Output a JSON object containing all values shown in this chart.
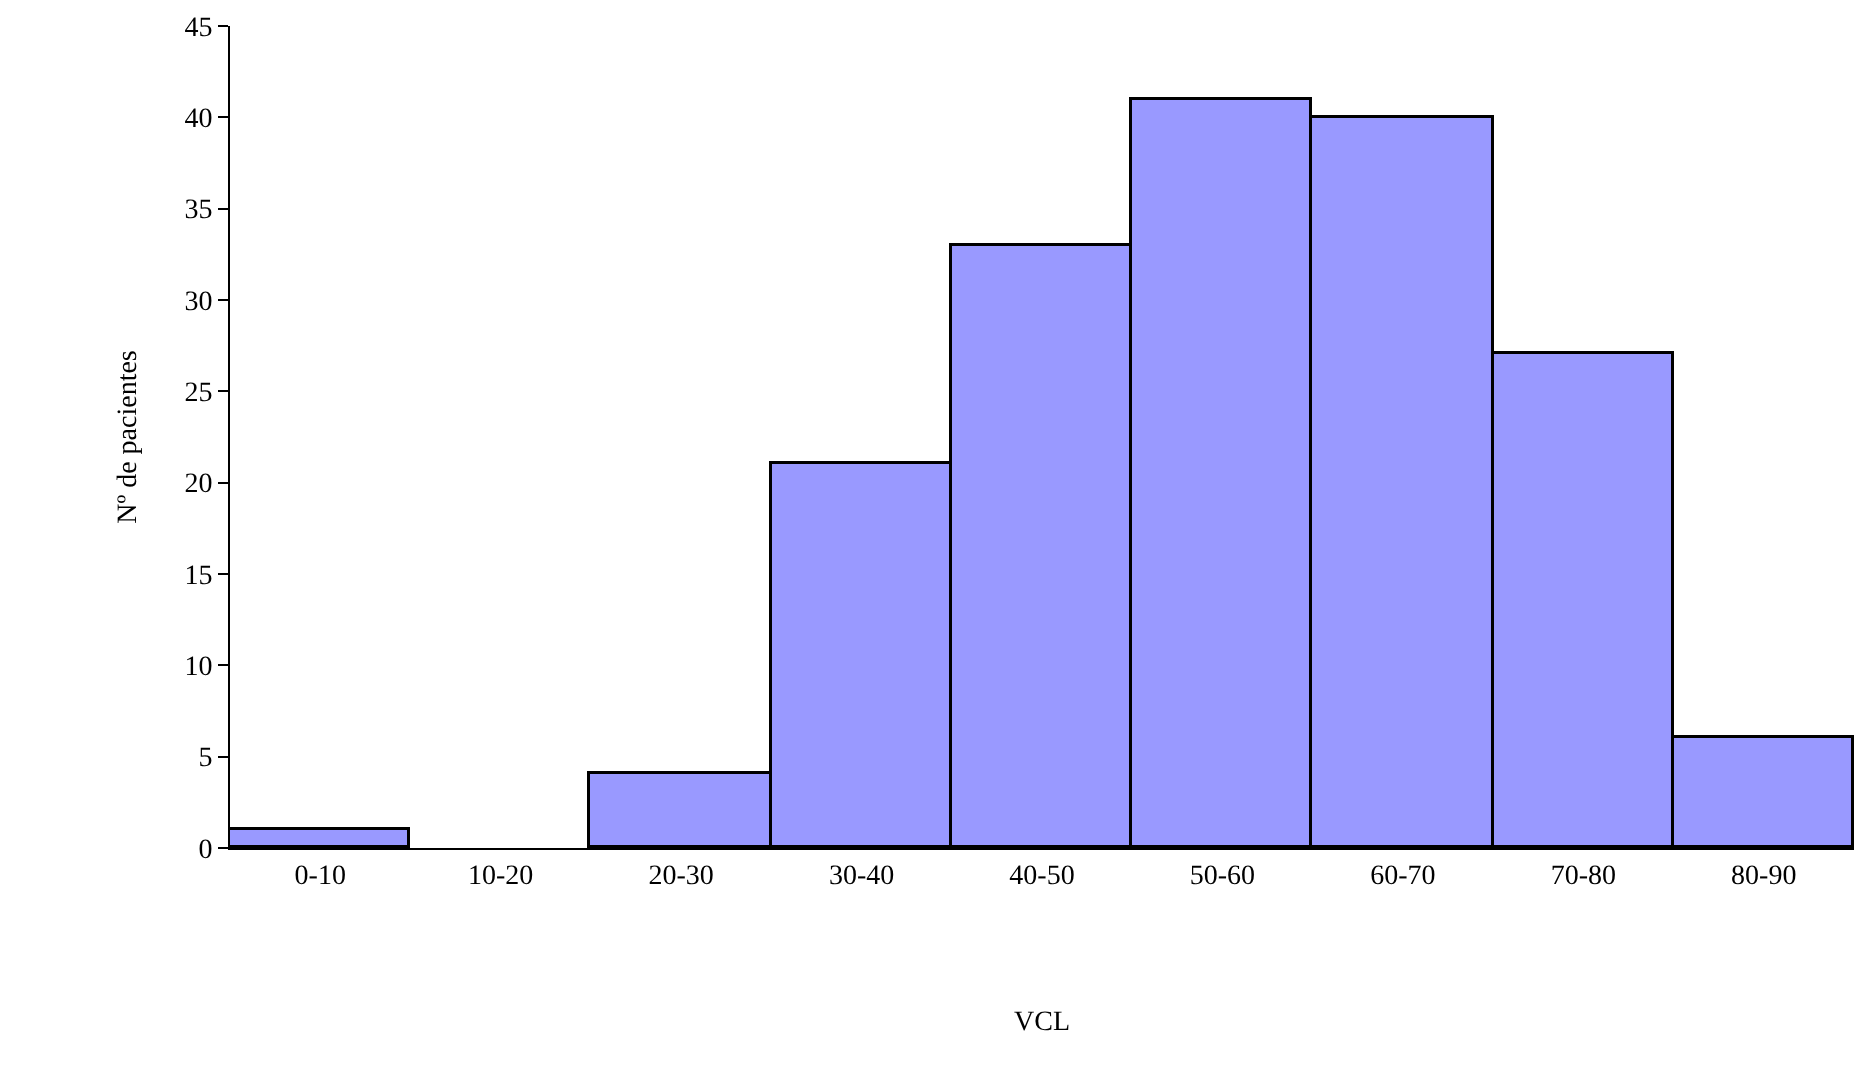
{
  "chart_data": {
    "type": "bar",
    "xlabel": "VCL",
    "ylabel": "Nº de pacientes",
    "categories": [
      "0-10",
      "10-20",
      "20-30",
      "30-40",
      "40-50",
      "50-60",
      "60-70",
      "70-80",
      "80-90"
    ],
    "values": [
      1,
      0,
      4,
      21,
      33,
      41,
      40,
      27,
      6
    ],
    "color": "#9999ff",
    "ylim": [
      0,
      45
    ],
    "yticks": [
      0,
      5,
      10,
      15,
      20,
      25,
      30,
      35,
      40,
      45
    ],
    "grid": false,
    "legend": false
  }
}
